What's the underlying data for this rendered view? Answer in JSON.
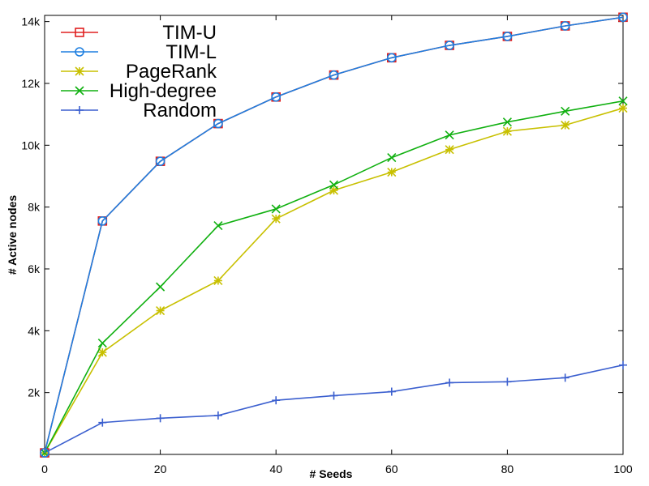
{
  "chart_data": {
    "type": "line",
    "title": "",
    "xlabel": "# Seeds",
    "ylabel": "# Active nodes",
    "x": [
      0,
      10,
      20,
      30,
      40,
      50,
      60,
      70,
      80,
      90,
      100
    ],
    "xlim": [
      0,
      100
    ],
    "ylim": [
      0,
      14200
    ],
    "xticks": [
      0,
      20,
      40,
      60,
      80,
      100
    ],
    "xtick_labels": [
      "0",
      "20",
      "40",
      "60",
      "80",
      "100"
    ],
    "yticks": [
      2000,
      4000,
      6000,
      8000,
      10000,
      12000,
      14000
    ],
    "ytick_labels": [
      "2k",
      "4k",
      "6k",
      "8k",
      "10k",
      "12k",
      "14k"
    ],
    "grid": false,
    "legend_position": "top-left",
    "series": [
      {
        "name": "TIM-U",
        "color": "#e02020",
        "marker": "square",
        "values": [
          50,
          7550,
          9480,
          10700,
          11560,
          12270,
          12830,
          13230,
          13520,
          13860,
          14140
        ]
      },
      {
        "name": "TIM-L",
        "color": "#1e7fe0",
        "marker": "circle",
        "values": [
          50,
          7550,
          9480,
          10700,
          11560,
          12270,
          12830,
          13230,
          13520,
          13860,
          14140
        ]
      },
      {
        "name": "PageRank",
        "color": "#c8c000",
        "marker": "asterisk",
        "values": [
          50,
          3300,
          4650,
          5620,
          7620,
          8540,
          9130,
          9860,
          10450,
          10650,
          11200
        ]
      },
      {
        "name": "High-degree",
        "color": "#10b010",
        "marker": "x",
        "values": [
          50,
          3600,
          5420,
          7400,
          7940,
          8720,
          9600,
          10330,
          10750,
          11100,
          11430
        ]
      },
      {
        "name": "Random",
        "color": "#3b5fcf",
        "marker": "plus",
        "values": [
          50,
          1030,
          1170,
          1260,
          1750,
          1900,
          2030,
          2320,
          2350,
          2480,
          2890
        ]
      }
    ]
  }
}
